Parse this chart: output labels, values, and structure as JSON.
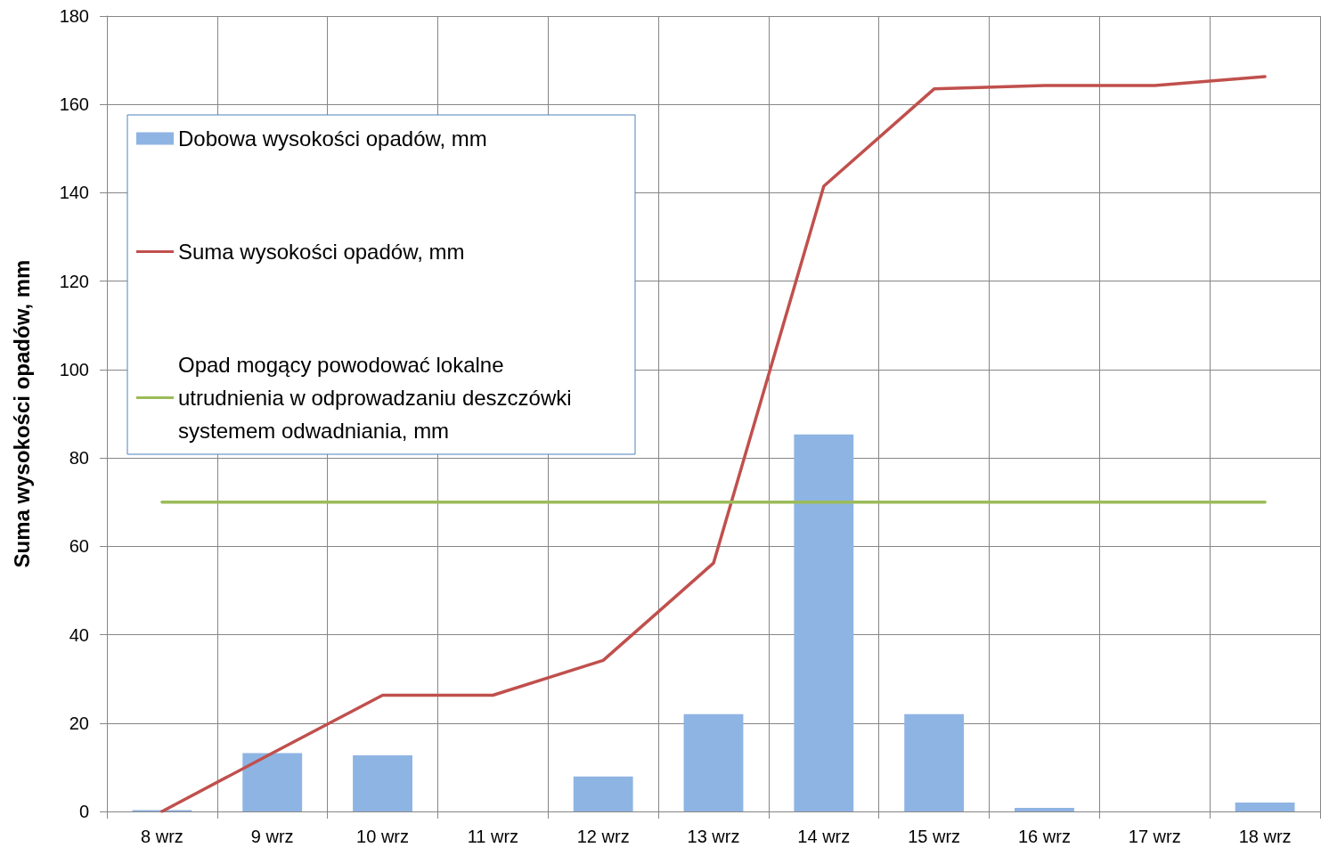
{
  "chart_data": {
    "type": "bar",
    "ylabel": "Suma wysokości opadów, mm",
    "categories": [
      "8 wrz",
      "9 wrz",
      "10 wrz",
      "11 wrz",
      "12 wrz",
      "13 wrz",
      "14 wrz",
      "15 wrz",
      "16 wrz",
      "17 wrz",
      "18 wrz"
    ],
    "series": [
      {
        "name": "Dobowa wysokości opadów, mm",
        "color": "#8eb4e3",
        "values": [
          0.3,
          13.2,
          12.7,
          0,
          7.9,
          22,
          85.3,
          22,
          0.8,
          0,
          2
        ]
      },
      {
        "name": "Suma wysokości opadów, mm",
        "type": "line",
        "color": "#c0504d",
        "values": [
          0,
          13.2,
          26.3,
          26.3,
          34.2,
          56.2,
          141.5,
          163.5,
          164.3,
          164.3,
          166.3
        ]
      },
      {
        "name": "Opad mogący powodować lokalne utrudnienia w odprowadzaniu deszczówki systemem odwadniania, mm",
        "type": "line",
        "color": "#9bbb59",
        "values": [
          70,
          70,
          70,
          70,
          70,
          70,
          70,
          70,
          70,
          70,
          70
        ]
      }
    ],
    "ylim": [
      0,
      180
    ],
    "yticks": [
      0,
      20,
      40,
      60,
      80,
      100,
      120,
      140,
      160,
      180
    ],
    "grid": true,
    "legend": "top left",
    "marker": "none",
    "line_style": "solid"
  }
}
